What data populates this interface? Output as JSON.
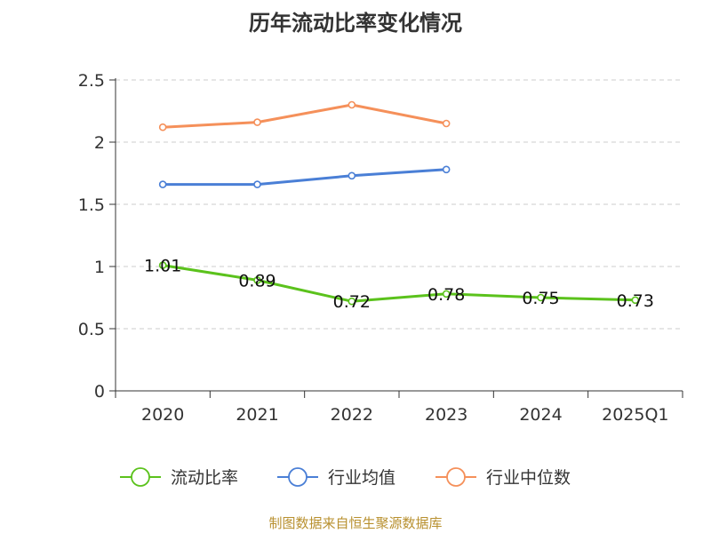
{
  "chart_data": {
    "type": "line",
    "title": "历年流动比率变化情况",
    "categories": [
      "2020",
      "2021",
      "2022",
      "2023",
      "2024",
      "2025Q1"
    ],
    "ylim": [
      0,
      2.5
    ],
    "yticks": [
      "0",
      "0.5",
      "1",
      "1.5",
      "2",
      "2.5"
    ],
    "ytick_values": [
      0,
      0.5,
      1,
      1.5,
      2,
      2.5
    ],
    "grid": true,
    "legend_position": "bottom",
    "series": [
      {
        "name": "流动比率",
        "color": "#5bc21c",
        "values": [
          1.01,
          0.89,
          0.72,
          0.78,
          0.75,
          0.73
        ],
        "labels": [
          "1.01",
          "0.89",
          "0.72",
          "0.78",
          "0.75",
          "0.73"
        ]
      },
      {
        "name": "行业均值",
        "color": "#4a7fd6",
        "values": [
          1.66,
          1.66,
          1.73,
          1.78,
          null,
          null
        ]
      },
      {
        "name": "行业中位数",
        "color": "#f5905a",
        "values": [
          2.12,
          2.16,
          2.3,
          2.15,
          null,
          null
        ]
      }
    ]
  },
  "source_text": "制图数据来自恒生聚源数据库"
}
